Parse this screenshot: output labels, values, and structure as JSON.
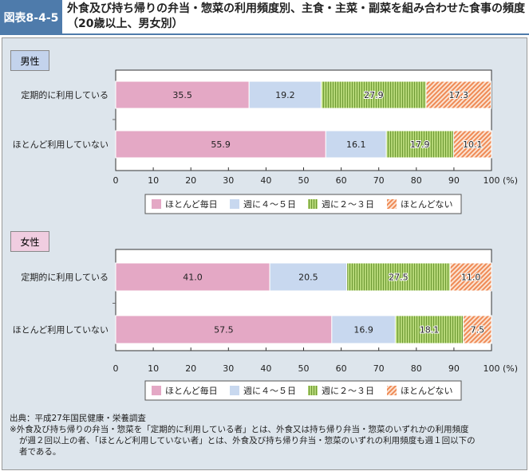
{
  "header": {
    "figure_id": "図表8-4-5",
    "title": "外食及び持ち帰りの弁当・惣菜の利用頻度別、主食・主菜・副菜を組み合わせた食事の頻度（20歳以上、男女別）"
  },
  "colors": {
    "ほとんど毎日": "#e4a8c5",
    "週に４～５日": "#c8d8ef",
    "週に２～３日": "#a6cc66",
    "ほとんどない": "#f3a070"
  },
  "chart_data": [
    {
      "type": "bar",
      "orientation": "horizontal",
      "stacked": true,
      "title": "男性",
      "categories": [
        "定期的に利用している",
        "ほとんど利用していない"
      ],
      "series": [
        {
          "name": "ほとんど毎日",
          "values": [
            35.5,
            55.9
          ]
        },
        {
          "name": "週に４～５日",
          "values": [
            19.2,
            16.1
          ]
        },
        {
          "name": "週に２～３日",
          "values": [
            27.9,
            17.9
          ]
        },
        {
          "name": "ほとんどない",
          "values": [
            17.3,
            10.1
          ]
        }
      ],
      "xlim": [
        0,
        100
      ],
      "xticks": [
        "0",
        "10",
        "20",
        "30",
        "40",
        "50",
        "60",
        "70",
        "80",
        "90",
        "100"
      ],
      "xunit": "(%)",
      "legend": "bottom"
    },
    {
      "type": "bar",
      "orientation": "horizontal",
      "stacked": true,
      "title": "女性",
      "categories": [
        "定期的に利用している",
        "ほとんど利用していない"
      ],
      "series": [
        {
          "name": "ほとんど毎日",
          "values": [
            41.0,
            57.5
          ]
        },
        {
          "name": "週に４～５日",
          "values": [
            20.5,
            16.9
          ]
        },
        {
          "name": "週に２～３日",
          "values": [
            27.5,
            18.1
          ]
        },
        {
          "name": "ほとんどない",
          "values": [
            11.0,
            7.5
          ]
        }
      ],
      "xlim": [
        0,
        100
      ],
      "xticks": [
        "0",
        "10",
        "20",
        "30",
        "40",
        "50",
        "60",
        "70",
        "80",
        "90",
        "100"
      ],
      "xunit": "(%)",
      "legend": "bottom"
    }
  ],
  "notes": {
    "source": "出典：平成27年国民健康・栄養調査",
    "note1": "※外食及び持ち帰りの弁当・惣菜を「定期的に利用している者」とは、外食又は持ち帰り弁当・惣菜のいずれかの利用頻度",
    "note2": "が週２回以上の者、「ほとんど利用していない者」とは、外食及び持ち帰り弁当・惣菜のいずれの利用頻度も週１回以下の",
    "note3": "者である。"
  }
}
